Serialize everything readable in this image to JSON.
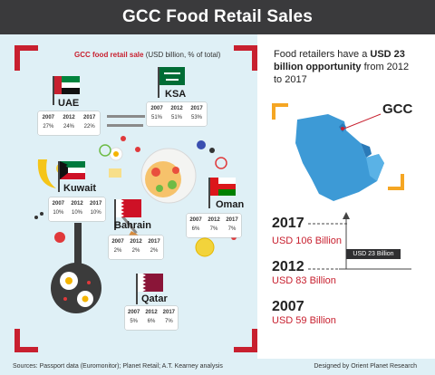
{
  "header": {
    "title": "GCC Food Retail Sales"
  },
  "legend": {
    "title": "GCC food retail sale",
    "unit": "(USD billion, % of total)"
  },
  "countries": [
    {
      "name": "UAE",
      "years": [
        "2007",
        "2012",
        "2017"
      ],
      "values": [
        "27%",
        "24%",
        "22%"
      ]
    },
    {
      "name": "KSA",
      "years": [
        "2007",
        "2012",
        "2017"
      ],
      "values": [
        "51%",
        "51%",
        "53%"
      ]
    },
    {
      "name": "Kuwait",
      "years": [
        "2007",
        "2012",
        "2017"
      ],
      "values": [
        "10%",
        "10%",
        "10%"
      ]
    },
    {
      "name": "Oman",
      "years": [
        "2007",
        "2012",
        "2017"
      ],
      "values": [
        "6%",
        "7%",
        "7%"
      ]
    },
    {
      "name": "Bahrain",
      "years": [
        "2007",
        "2012",
        "2017"
      ],
      "values": [
        "2%",
        "2%",
        "2%"
      ]
    },
    {
      "name": "Qatar",
      "years": [
        "2007",
        "2012",
        "2017"
      ],
      "values": [
        "5%",
        "6%",
        "7%"
      ]
    }
  ],
  "right": {
    "intro_a": "Food retailers have a ",
    "intro_b": "USD 23 billion opportunity",
    "intro_c": " from 2012 to 2017",
    "map_label": "GCC",
    "timeline": [
      {
        "year": "2017",
        "value": "USD 106 Billion"
      },
      {
        "year": "2012",
        "value": "USD 83 Billion"
      },
      {
        "year": "2007",
        "value": "USD 59 Billion"
      }
    ],
    "badge": "USD 23 Billion"
  },
  "footer": {
    "sources": "Sources: Passport data (Euromonitor); Planet Retail; A.T. Kearney analysis",
    "credit": "Designed by Orient Planet Research"
  },
  "colors": {
    "red": "#c8202f",
    "orange": "#f5a623",
    "dark": "#3a3a3c",
    "panel": "#dff0f6",
    "map": "#3d9ad6"
  }
}
